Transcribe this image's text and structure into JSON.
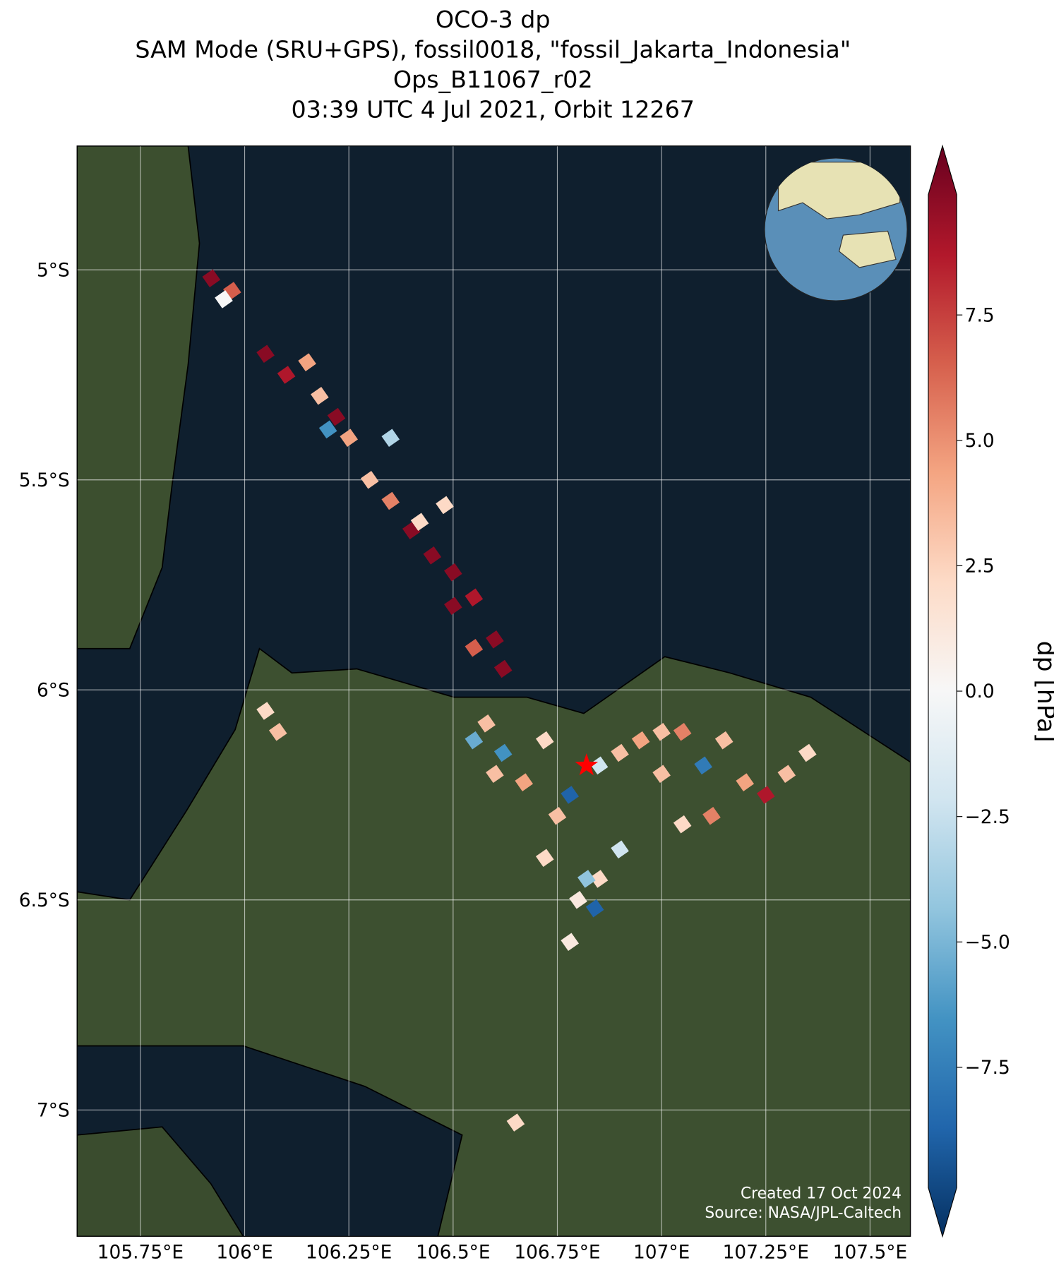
{
  "chart_data": {
    "type": "map-cells",
    "title_lines": [
      "OCO-3 dp",
      "SAM Mode (SRU+GPS), fossil0018, \"fossil_Jakarta_Indonesia\"",
      "Ops_B11067_r02",
      "03:39 UTC 4 Jul 2021, Orbit 12267"
    ],
    "xlim": [
      105.598,
      107.597
    ],
    "ylim": [
      -7.301,
      -4.705
    ],
    "xticks": [
      {
        "value": 105.75,
        "label": "105.75°E"
      },
      {
        "value": 106,
        "label": "106°E"
      },
      {
        "value": 106.25,
        "label": "106.25°E"
      },
      {
        "value": 106.5,
        "label": "106.5°E"
      },
      {
        "value": 106.75,
        "label": "106.75°E"
      },
      {
        "value": 107,
        "label": "107°E"
      },
      {
        "value": 107.25,
        "label": "107.25°E"
      },
      {
        "value": 107.5,
        "label": "107.5°E"
      }
    ],
    "yticks": [
      {
        "value": -5,
        "label": "5°S"
      },
      {
        "value": -5.5,
        "label": "5.5°S"
      },
      {
        "value": -6,
        "label": "6°S"
      },
      {
        "value": -6.5,
        "label": "6.5°S"
      },
      {
        "value": -7,
        "label": "7°S"
      }
    ],
    "grid": true,
    "colorbar_label": "dp [hPa]",
    "clim": [
      -9.9,
      9.9
    ],
    "cticks": [
      {
        "value": 7.5,
        "label": "7.5"
      },
      {
        "value": 5,
        "label": "5.0"
      },
      {
        "value": 2.5,
        "label": "2.5"
      },
      {
        "value": 0,
        "label": "0.0"
      },
      {
        "value": -2.5,
        "label": "−2.5"
      },
      {
        "value": -5,
        "label": "−5.0"
      },
      {
        "value": -7.5,
        "label": "−7.5"
      }
    ],
    "target": {
      "lon": 106.82,
      "lat": -6.18
    },
    "annotations": [
      "Created 17 Oct 2024",
      "Source: NASA/JPL-Caltech"
    ],
    "lon": [
      105.92,
      105.97,
      105.95,
      106.05,
      106.1,
      106.15,
      106.18,
      106.22,
      106.25,
      106.2,
      106.3,
      106.35,
      106.4,
      106.45,
      106.5,
      106.55,
      106.5,
      106.6,
      106.62,
      106.55,
      106.42,
      106.35,
      106.48,
      106.58,
      106.62,
      106.67,
      106.72,
      106.78,
      106.85,
      106.75,
      106.9,
      106.95,
      107.0,
      107.05,
      107.1,
      107.15,
      107.2,
      107.25,
      107.3,
      107.35,
      107.05,
      107.12,
      106.9,
      106.85,
      106.8,
      106.78,
      106.82,
      107.0,
      106.6,
      106.55,
      106.72,
      106.84,
      106.05,
      106.08,
      106.65
    ],
    "lat": [
      -5.02,
      -5.05,
      -5.07,
      -5.2,
      -5.25,
      -5.22,
      -5.3,
      -5.35,
      -5.4,
      -5.38,
      -5.5,
      -5.55,
      -5.62,
      -5.68,
      -5.72,
      -5.78,
      -5.8,
      -5.88,
      -5.95,
      -5.9,
      -5.6,
      -5.4,
      -5.56,
      -6.08,
      -6.15,
      -6.22,
      -6.12,
      -6.25,
      -6.18,
      -6.3,
      -6.15,
      -6.12,
      -6.2,
      -6.1,
      -6.18,
      -6.12,
      -6.22,
      -6.25,
      -6.2,
      -6.15,
      -6.32,
      -6.3,
      -6.38,
      -6.45,
      -6.5,
      -6.6,
      -6.45,
      -6.1,
      -6.2,
      -6.12,
      -6.4,
      -6.52,
      -6.05,
      -6.1,
      -7.03
    ],
    "values": [
      9,
      6,
      0,
      9,
      8,
      4,
      3,
      9,
      4,
      -6,
      3,
      5,
      9,
      9,
      9,
      8,
      9,
      9,
      9,
      6,
      2,
      -3,
      2,
      3,
      -6,
      4,
      2,
      -8,
      -2,
      3,
      3,
      4,
      3,
      5,
      -7,
      3,
      4,
      8,
      3,
      2,
      2,
      5,
      -2,
      2,
      1,
      1,
      -4,
      3,
      3,
      -5,
      2,
      -8,
      2,
      3,
      2
    ]
  }
}
